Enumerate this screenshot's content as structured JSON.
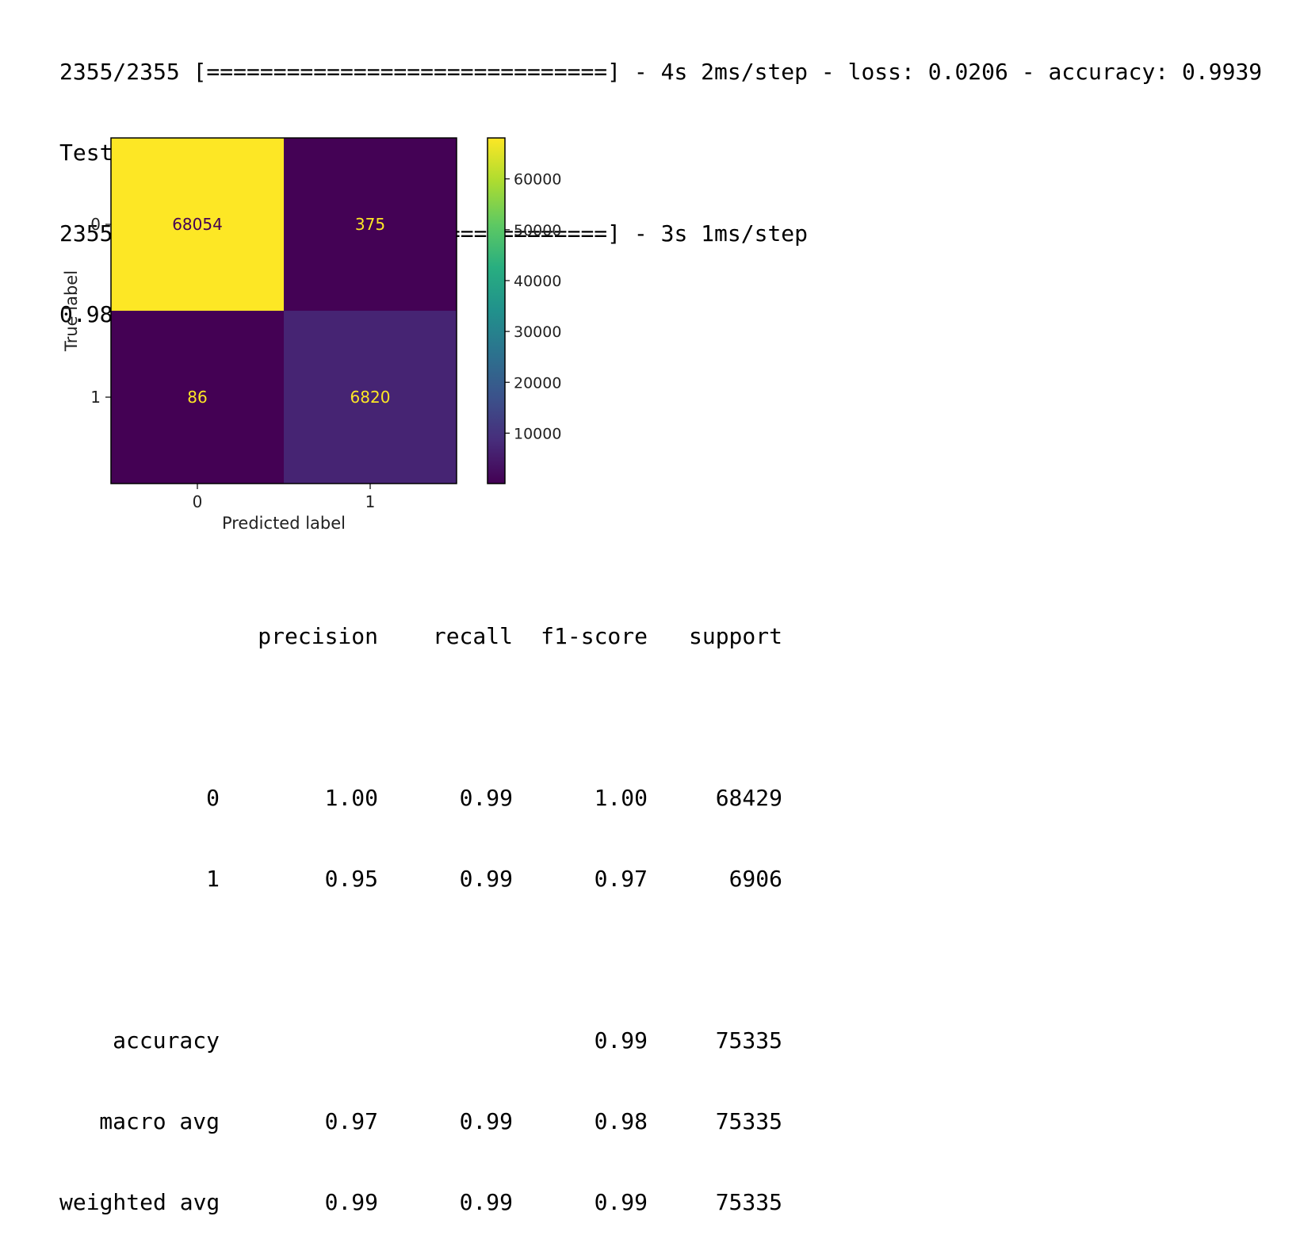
{
  "log": {
    "lines": [
      "2355/2355 [==============================] - 4s 2ms/step - loss: 0.0206 - accuracy: 0.9939",
      "Test accuracy: 99.39%",
      "2355/2355 [==============================] - 3s 1ms/step",
      "0.9819658500663979"
    ]
  },
  "chart_data": {
    "type": "heatmap",
    "title": "",
    "xlabel": "Predicted label",
    "ylabel": "True label",
    "x_ticks": [
      "0",
      "1"
    ],
    "y_ticks": [
      "0",
      "1"
    ],
    "matrix": [
      [
        68054,
        375
      ],
      [
        86,
        6820
      ]
    ],
    "cell_labels": [
      [
        "68054",
        "375"
      ],
      [
        "86",
        "6820"
      ]
    ],
    "colormap": "viridis",
    "colorbar": {
      "range": [
        86,
        68054
      ],
      "ticks": [
        10000,
        20000,
        30000,
        40000,
        50000,
        60000
      ],
      "tick_labels": [
        "10000",
        "20000",
        "30000",
        "40000",
        "50000",
        "60000"
      ]
    },
    "grid": false,
    "colors": {
      "high": "#fde725",
      "low": "#440154",
      "cell_text_on_high": "#440154",
      "cell_text_on_low": "#fde725"
    }
  },
  "report": {
    "header": [
      "",
      "precision",
      "recall",
      "f1-score",
      "support"
    ],
    "rows": [
      [
        "0",
        "1.00",
        "0.99",
        "1.00",
        "68429"
      ],
      [
        "1",
        "0.95",
        "0.99",
        "0.97",
        "6906"
      ]
    ],
    "summary": [
      [
        "accuracy",
        "",
        "",
        "0.99",
        "75335"
      ],
      [
        "macro avg",
        "0.97",
        "0.99",
        "0.98",
        "75335"
      ],
      [
        "weighted avg",
        "0.99",
        "0.99",
        "0.99",
        "75335"
      ]
    ]
  }
}
